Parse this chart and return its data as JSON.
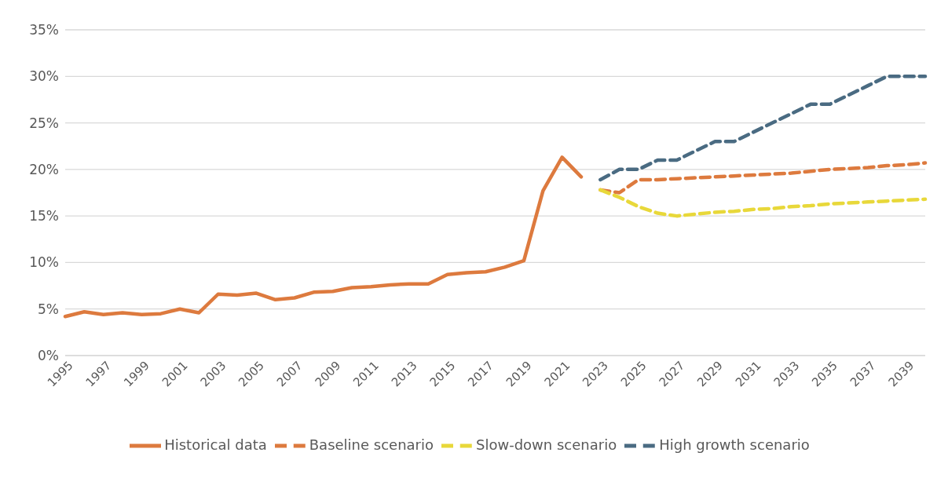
{
  "chart_data": {
    "type": "line",
    "categories": [
      "1995",
      null,
      "1997",
      null,
      "1999",
      null,
      "2001",
      null,
      "2003",
      null,
      "2005",
      null,
      "2007",
      null,
      "2009",
      null,
      "2011",
      null,
      "2013",
      null,
      "2015",
      null,
      "2017",
      null,
      "2019",
      null,
      "2021",
      null,
      "2023",
      null,
      "2025",
      null,
      "2027",
      null,
      "2029",
      null,
      "2031",
      null,
      "2033",
      null,
      "2035",
      null,
      "2037",
      null,
      "2039",
      null
    ],
    "series": [
      {
        "name": "Historical data",
        "color": "#dd7a3e",
        "line_style": "solid",
        "values": [
          4.2,
          4.7,
          4.4,
          4.6,
          4.4,
          4.5,
          5.0,
          4.6,
          6.6,
          6.5,
          6.7,
          6.0,
          6.2,
          6.8,
          6.9,
          7.3,
          7.4,
          7.6,
          7.7,
          7.7,
          8.7,
          8.9,
          9.0,
          9.5,
          10.2,
          17.7,
          21.3,
          19.2,
          null,
          null,
          null,
          null,
          null,
          null,
          null,
          null,
          null,
          null,
          null,
          null,
          null,
          null,
          null,
          null,
          null,
          null
        ]
      },
      {
        "name": "Baseline scenario",
        "color": "#dd7a3e",
        "line_style": "dashed",
        "values": [
          null,
          null,
          null,
          null,
          null,
          null,
          null,
          null,
          null,
          null,
          null,
          null,
          null,
          null,
          null,
          null,
          null,
          null,
          null,
          null,
          null,
          null,
          null,
          null,
          null,
          null,
          null,
          null,
          17.8,
          17.5,
          18.9,
          18.9,
          19.0,
          19.1,
          19.2,
          19.3,
          19.4,
          19.5,
          19.6,
          19.8,
          20.0,
          20.1,
          20.2,
          20.4,
          20.5,
          20.7
        ]
      },
      {
        "name": "Slow-down scenario",
        "color": "#e8d83a",
        "line_style": "dashed",
        "values": [
          null,
          null,
          null,
          null,
          null,
          null,
          null,
          null,
          null,
          null,
          null,
          null,
          null,
          null,
          null,
          null,
          null,
          null,
          null,
          null,
          null,
          null,
          null,
          null,
          null,
          null,
          null,
          null,
          17.8,
          17.0,
          16.0,
          15.3,
          15.0,
          15.2,
          15.4,
          15.5,
          15.7,
          15.8,
          16.0,
          16.1,
          16.3,
          16.4,
          16.5,
          16.6,
          16.7,
          16.8
        ]
      },
      {
        "name": "High growth scenario",
        "color": "#4a6b82",
        "line_style": "dashed",
        "values": [
          null,
          null,
          null,
          null,
          null,
          null,
          null,
          null,
          null,
          null,
          null,
          null,
          null,
          null,
          null,
          null,
          null,
          null,
          null,
          null,
          null,
          null,
          null,
          null,
          null,
          null,
          null,
          null,
          18.9,
          20.0,
          20.0,
          21.0,
          21.0,
          22.0,
          23.0,
          23.0,
          24.0,
          25.0,
          26.0,
          27.0,
          27.0,
          28.0,
          29.0,
          30.0,
          30.0,
          30.0
        ]
      }
    ],
    "ylim": [
      0,
      35
    ],
    "yticks": [
      {
        "value": 0,
        "label": "0%"
      },
      {
        "value": 5,
        "label": "5%"
      },
      {
        "value": 10,
        "label": "10%"
      },
      {
        "value": 15,
        "label": "15%"
      },
      {
        "value": 20,
        "label": "20%"
      },
      {
        "value": 25,
        "label": "25%"
      },
      {
        "value": 30,
        "label": "30%"
      },
      {
        "value": 35,
        "label": "35%"
      }
    ],
    "grid": "y",
    "legend": "bottom",
    "marker": "none"
  }
}
